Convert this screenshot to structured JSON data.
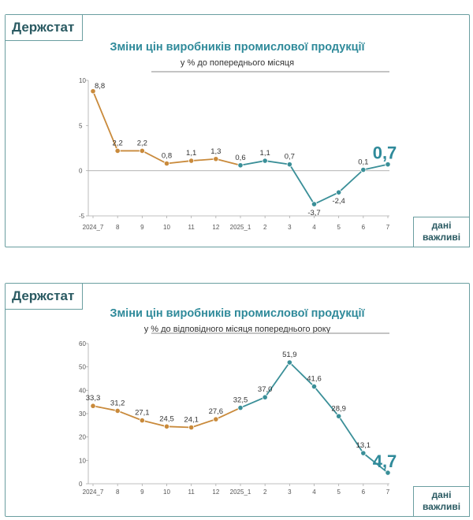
{
  "colors": {
    "orange": "#c98a3b",
    "teal": "#3a8f98",
    "axis": "#888888",
    "title": "#2f8a9a"
  },
  "chart_data": [
    {
      "type": "line",
      "brand": "Держстат",
      "title": "Зміни цін виробників промислової продукції",
      "subtitle": "у % до попереднього місяця",
      "badge_line1": "дані",
      "badge_line2": "важливі",
      "xlabel": "",
      "ylabel": "",
      "ylim": [
        -5,
        10
      ],
      "yticks": [
        "10",
        "5",
        "0",
        "-5"
      ],
      "ytick_values": [
        10,
        5,
        0,
        -5
      ],
      "categories": [
        "2024_7",
        "8",
        "9",
        "10",
        "11",
        "12",
        "2025_1",
        "2",
        "3",
        "4",
        "5",
        "6",
        "7"
      ],
      "values": [
        8.8,
        2.2,
        2.2,
        0.8,
        1.1,
        1.3,
        0.6,
        1.1,
        0.7,
        -3.7,
        -2.4,
        0.1,
        0.7
      ],
      "labels": [
        "8,8",
        "2,2",
        "2,2",
        "0,8",
        "1,1",
        "1,3",
        "0,6",
        "1,1",
        "0,7",
        "-3,7",
        "-2,4",
        "0,1",
        "0,7"
      ],
      "label_pos": [
        "right",
        "above",
        "above",
        "above",
        "above",
        "above",
        "above",
        "above",
        "above",
        "below",
        "below",
        "above",
        "big"
      ],
      "series_split_index": 6,
      "grid": false
    },
    {
      "type": "line",
      "brand": "Держстат",
      "title": "Зміни цін виробників промислової продукції",
      "subtitle": "у % до відповідного місяця попереднього року",
      "badge_line1": "дані",
      "badge_line2": "важливі",
      "xlabel": "",
      "ylabel": "",
      "ylim": [
        0,
        60
      ],
      "yticks": [
        "60",
        "50",
        "40",
        "30",
        "20",
        "10",
        "0"
      ],
      "ytick_values": [
        60,
        50,
        40,
        30,
        20,
        10,
        0
      ],
      "categories": [
        "2024_7",
        "8",
        "9",
        "10",
        "11",
        "12",
        "2025_1",
        "2",
        "3",
        "4",
        "5",
        "6",
        "7"
      ],
      "values": [
        33.3,
        31.2,
        27.1,
        24.5,
        24.1,
        27.6,
        32.5,
        37.0,
        51.9,
        41.6,
        28.9,
        13.1,
        4.7
      ],
      "labels": [
        "33,3",
        "31,2",
        "27,1",
        "24,5",
        "24,1",
        "27,6",
        "32,5",
        "37,0",
        "51,9",
        "41,6",
        "28,9",
        "13,1",
        "4,7"
      ],
      "label_pos": [
        "above",
        "above",
        "above",
        "above",
        "above",
        "above",
        "above",
        "above",
        "above",
        "above",
        "above",
        "above",
        "big"
      ],
      "series_split_index": 6,
      "grid": false
    }
  ]
}
